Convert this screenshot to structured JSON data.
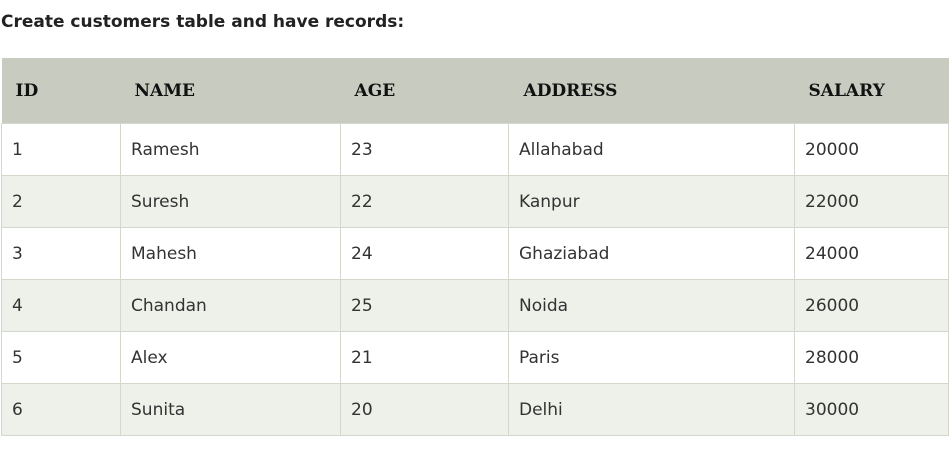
{
  "heading": "Create customers table and have records:",
  "table": {
    "columns": [
      "ID",
      "NAME",
      "AGE",
      "ADDRESS",
      "SALARY"
    ],
    "rows": [
      [
        "1",
        "Ramesh",
        "23",
        "Allahabad",
        "20000"
      ],
      [
        "2",
        "Suresh",
        "22",
        "Kanpur",
        "22000"
      ],
      [
        "3",
        "Mahesh",
        "24",
        "Ghaziabad",
        "24000"
      ],
      [
        "4",
        "Chandan",
        "25",
        "Noida",
        "26000"
      ],
      [
        "5",
        "Alex",
        "21",
        "Paris",
        "28000"
      ],
      [
        "6",
        "Sunita",
        "20",
        "Delhi",
        "30000"
      ]
    ]
  },
  "colors": {
    "header_bg": "#c8ccc0",
    "row_alt_bg": "#eef1ea",
    "border": "#d4d8cc"
  }
}
